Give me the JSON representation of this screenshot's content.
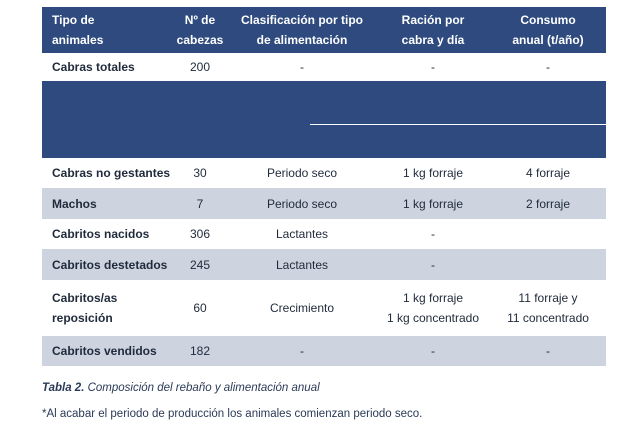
{
  "table": {
    "headers": {
      "type_line1": "Tipo de",
      "type_line2": "animales",
      "count_line1": "Nº de",
      "count_line2": "cabezas",
      "class_line1": "Clasificación por tipo",
      "class_line2": "de alimentación",
      "ration_line1": "Ración por",
      "ration_line2": "cabra y día",
      "annual_line1": "Consumo",
      "annual_line2": "anual (t/año)"
    },
    "rows": [
      {
        "type": "Cabras totales",
        "count": "200",
        "class": "-",
        "ration": "-",
        "annual": "-"
      },
      {
        "type": "Cabras no gestantes",
        "count": "30",
        "class": "Periodo seco",
        "ration": "1 kg forraje",
        "annual": "4 forraje"
      },
      {
        "type": "Machos",
        "count": "7",
        "class": "Periodo seco",
        "ration": "1 kg forraje",
        "annual": "2 forraje"
      },
      {
        "type": "Cabritos nacidos",
        "count": "306",
        "class": "Lactantes",
        "ration": "-",
        "annual": ""
      },
      {
        "type": "Cabritos destetados",
        "count": "245",
        "class": "Lactantes",
        "ration": "-",
        "annual": ""
      },
      {
        "type_line1": "Cabritos/as",
        "type_line2": "reposición",
        "count": "60",
        "class": "Crecimiento",
        "ration_line1": "1 kg forraje",
        "ration_line2": "1 kg concentrado",
        "annual_line1": "11 forraje y",
        "annual_line2": "11 concentrado"
      },
      {
        "type": "Cabritos vendidos",
        "count": "182",
        "class": "-",
        "ration": "-",
        "annual": "-"
      }
    ]
  },
  "caption": {
    "label": "Tabla 2.",
    "text": " Composición del rebaño y alimentación anual"
  },
  "footnote": "*Al acabar el periodo de producción los animales comienzan periodo seco.",
  "colors": {
    "header_bg": "#2e4a7e",
    "row_alt_bg": "#cdd3df"
  }
}
